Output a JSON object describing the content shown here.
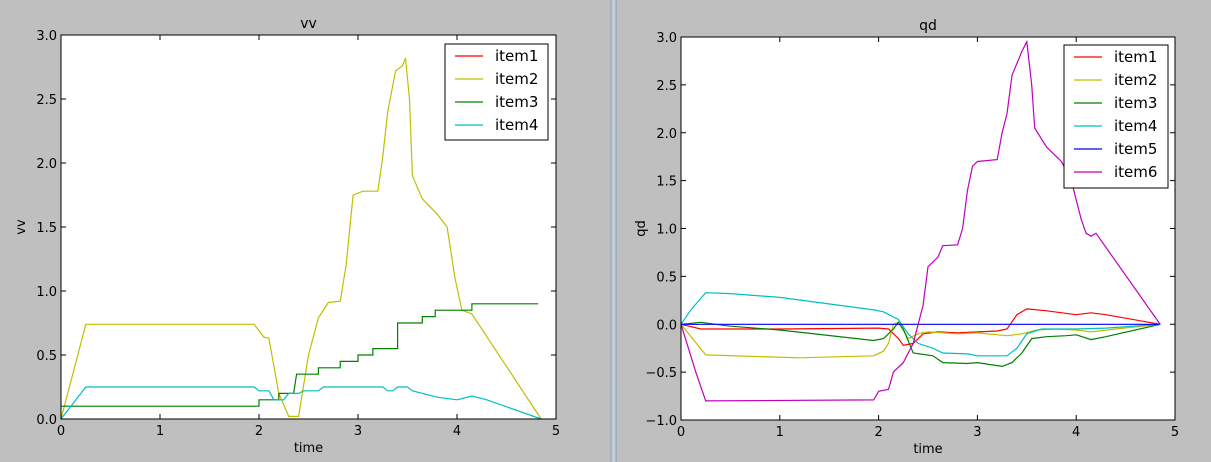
{
  "colors": {
    "item1": "#ff0000",
    "item2": "#bfbf00",
    "item3": "#008000",
    "item4": "#00bfbf",
    "item5": "#0000ff",
    "item6": "#bf00bf"
  },
  "chart_data": [
    {
      "type": "line",
      "title": "vv",
      "xlabel": "time",
      "ylabel": "vv",
      "xlim": [
        0,
        5
      ],
      "ylim": [
        0,
        3.0
      ],
      "xticks": [
        "0",
        "1",
        "2",
        "3",
        "4",
        "5"
      ],
      "yticks": [
        "0.0",
        "0.5",
        "1.0",
        "1.5",
        "2.0",
        "2.5",
        "3.0"
      ],
      "legend": "top-right",
      "series": [
        {
          "name": "item1",
          "color": "#ff0000",
          "points": []
        },
        {
          "name": "item2",
          "color": "#bfbf00",
          "points": [
            [
              0,
              0
            ],
            [
              0.25,
              0.74
            ],
            [
              1.95,
              0.74
            ],
            [
              2.05,
              0.64
            ],
            [
              2.1,
              0.63
            ],
            [
              2.2,
              0.2
            ],
            [
              2.3,
              0.02
            ],
            [
              2.4,
              0.02
            ],
            [
              2.5,
              0.5
            ],
            [
              2.6,
              0.79
            ],
            [
              2.7,
              0.91
            ],
            [
              2.82,
              0.92
            ],
            [
              2.88,
              1.2
            ],
            [
              2.95,
              1.75
            ],
            [
              3.05,
              1.78
            ],
            [
              3.2,
              1.78
            ],
            [
              3.25,
              2.05
            ],
            [
              3.3,
              2.4
            ],
            [
              3.38,
              2.72
            ],
            [
              3.45,
              2.76
            ],
            [
              3.48,
              2.82
            ],
            [
              3.52,
              2.5
            ],
            [
              3.55,
              1.9
            ],
            [
              3.65,
              1.72
            ],
            [
              3.8,
              1.6
            ],
            [
              3.9,
              1.5
            ],
            [
              3.98,
              1.1
            ],
            [
              4.05,
              0.85
            ],
            [
              4.15,
              0.82
            ],
            [
              4.85,
              0.0
            ]
          ]
        },
        {
          "name": "item3",
          "color": "#008000",
          "points": [
            [
              0,
              0.1
            ],
            [
              2.0,
              0.1
            ],
            [
              2.0,
              0.15
            ],
            [
              2.2,
              0.15
            ],
            [
              2.2,
              0.2
            ],
            [
              2.35,
              0.2
            ],
            [
              2.38,
              0.35
            ],
            [
              2.6,
              0.35
            ],
            [
              2.6,
              0.4
            ],
            [
              2.82,
              0.4
            ],
            [
              2.82,
              0.45
            ],
            [
              3.0,
              0.45
            ],
            [
              3.0,
              0.5
            ],
            [
              3.15,
              0.5
            ],
            [
              3.15,
              0.55
            ],
            [
              3.4,
              0.55
            ],
            [
              3.4,
              0.75
            ],
            [
              3.65,
              0.75
            ],
            [
              3.65,
              0.8
            ],
            [
              3.78,
              0.8
            ],
            [
              3.78,
              0.85
            ],
            [
              4.15,
              0.85
            ],
            [
              4.15,
              0.9
            ],
            [
              4.82,
              0.9
            ]
          ]
        },
        {
          "name": "item4",
          "color": "#00bfbf",
          "points": [
            [
              0,
              0
            ],
            [
              0.1,
              0.1
            ],
            [
              0.25,
              0.25
            ],
            [
              1.95,
              0.25
            ],
            [
              2.0,
              0.22
            ],
            [
              2.1,
              0.22
            ],
            [
              2.15,
              0.15
            ],
            [
              2.25,
              0.15
            ],
            [
              2.3,
              0.2
            ],
            [
              2.4,
              0.2
            ],
            [
              2.45,
              0.22
            ],
            [
              2.6,
              0.22
            ],
            [
              2.65,
              0.25
            ],
            [
              3.25,
              0.25
            ],
            [
              3.3,
              0.22
            ],
            [
              3.35,
              0.22
            ],
            [
              3.4,
              0.25
            ],
            [
              3.5,
              0.25
            ],
            [
              3.55,
              0.22
            ],
            [
              3.7,
              0.19
            ],
            [
              3.8,
              0.17
            ],
            [
              4.0,
              0.15
            ],
            [
              4.15,
              0.18
            ],
            [
              4.3,
              0.15
            ],
            [
              4.85,
              0.0
            ]
          ]
        }
      ]
    },
    {
      "type": "line",
      "title": "qd",
      "xlabel": "time",
      "ylabel": "qd",
      "xlim": [
        0,
        5
      ],
      "ylim": [
        -1.0,
        3.0
      ],
      "xticks": [
        "0",
        "1",
        "2",
        "3",
        "4",
        "5"
      ],
      "yticks": [
        "−1.0",
        "−0.5",
        "0.0",
        "0.5",
        "1.0",
        "1.5",
        "2.0",
        "2.5",
        "3.0"
      ],
      "legend": "top-right",
      "series": [
        {
          "name": "item1",
          "color": "#ff0000",
          "points": [
            [
              0,
              0
            ],
            [
              0.2,
              -0.05
            ],
            [
              1.0,
              -0.05
            ],
            [
              2.0,
              -0.04
            ],
            [
              2.1,
              -0.05
            ],
            [
              2.2,
              -0.15
            ],
            [
              2.25,
              -0.22
            ],
            [
              2.35,
              -0.2
            ],
            [
              2.45,
              -0.1
            ],
            [
              2.6,
              -0.08
            ],
            [
              2.8,
              -0.09
            ],
            [
              3.0,
              -0.08
            ],
            [
              3.2,
              -0.07
            ],
            [
              3.3,
              -0.05
            ],
            [
              3.4,
              0.1
            ],
            [
              3.5,
              0.16
            ],
            [
              3.7,
              0.14
            ],
            [
              4.0,
              0.1
            ],
            [
              4.15,
              0.12
            ],
            [
              4.3,
              0.1
            ],
            [
              4.85,
              0.0
            ]
          ]
        },
        {
          "name": "item2",
          "color": "#bfbf00",
          "points": [
            [
              0,
              0
            ],
            [
              0.25,
              -0.32
            ],
            [
              1.2,
              -0.35
            ],
            [
              1.95,
              -0.33
            ],
            [
              2.05,
              -0.28
            ],
            [
              2.1,
              -0.2
            ],
            [
              2.15,
              0.0
            ],
            [
              2.2,
              0.02
            ],
            [
              2.3,
              -0.15
            ],
            [
              2.4,
              -0.1
            ],
            [
              2.5,
              -0.08
            ],
            [
              2.8,
              -0.1
            ],
            [
              3.0,
              -0.09
            ],
            [
              3.3,
              -0.12
            ],
            [
              3.45,
              -0.1
            ],
            [
              3.6,
              -0.06
            ],
            [
              3.8,
              -0.05
            ],
            [
              4.0,
              -0.06
            ],
            [
              4.15,
              -0.08
            ],
            [
              4.4,
              -0.05
            ],
            [
              4.85,
              0.0
            ]
          ]
        },
        {
          "name": "item3",
          "color": "#008000",
          "points": [
            [
              0,
              0
            ],
            [
              0.2,
              0.02
            ],
            [
              0.5,
              -0.02
            ],
            [
              1.0,
              -0.06
            ],
            [
              1.95,
              -0.17
            ],
            [
              2.05,
              -0.15
            ],
            [
              2.15,
              -0.05
            ],
            [
              2.2,
              0.02
            ],
            [
              2.25,
              -0.05
            ],
            [
              2.35,
              -0.3
            ],
            [
              2.55,
              -0.33
            ],
            [
              2.65,
              -0.4
            ],
            [
              2.9,
              -0.41
            ],
            [
              3.0,
              -0.4
            ],
            [
              3.25,
              -0.44
            ],
            [
              3.35,
              -0.4
            ],
            [
              3.45,
              -0.3
            ],
            [
              3.55,
              -0.15
            ],
            [
              3.7,
              -0.13
            ],
            [
              3.9,
              -0.12
            ],
            [
              4.0,
              -0.11
            ],
            [
              4.15,
              -0.16
            ],
            [
              4.3,
              -0.13
            ],
            [
              4.85,
              0.0
            ]
          ]
        },
        {
          "name": "item4",
          "color": "#00bfbf",
          "points": [
            [
              0,
              0
            ],
            [
              0.1,
              0.15
            ],
            [
              0.25,
              0.33
            ],
            [
              0.5,
              0.32
            ],
            [
              1.0,
              0.28
            ],
            [
              1.95,
              0.15
            ],
            [
              2.05,
              0.13
            ],
            [
              2.2,
              0.05
            ],
            [
              2.3,
              -0.1
            ],
            [
              2.4,
              -0.2
            ],
            [
              2.55,
              -0.25
            ],
            [
              2.65,
              -0.3
            ],
            [
              2.9,
              -0.31
            ],
            [
              3.0,
              -0.33
            ],
            [
              3.3,
              -0.33
            ],
            [
              3.4,
              -0.25
            ],
            [
              3.5,
              -0.1
            ],
            [
              3.65,
              -0.05
            ],
            [
              4.0,
              -0.05
            ],
            [
              4.3,
              -0.04
            ],
            [
              4.85,
              0.0
            ]
          ]
        },
        {
          "name": "item5",
          "color": "#0000ff",
          "points": [
            [
              0,
              0
            ],
            [
              4.85,
              0
            ]
          ]
        },
        {
          "name": "item6",
          "color": "#bf00bf",
          "points": [
            [
              0,
              0
            ],
            [
              0.15,
              -0.5
            ],
            [
              0.25,
              -0.8
            ],
            [
              1.95,
              -0.79
            ],
            [
              2.0,
              -0.7
            ],
            [
              2.1,
              -0.68
            ],
            [
              2.15,
              -0.5
            ],
            [
              2.25,
              -0.4
            ],
            [
              2.35,
              -0.2
            ],
            [
              2.45,
              0.2
            ],
            [
              2.5,
              0.6
            ],
            [
              2.6,
              0.7
            ],
            [
              2.65,
              0.82
            ],
            [
              2.8,
              0.83
            ],
            [
              2.85,
              1.0
            ],
            [
              2.9,
              1.4
            ],
            [
              2.95,
              1.65
            ],
            [
              3.0,
              1.7
            ],
            [
              3.2,
              1.72
            ],
            [
              3.25,
              2.0
            ],
            [
              3.3,
              2.2
            ],
            [
              3.35,
              2.6
            ],
            [
              3.45,
              2.85
            ],
            [
              3.5,
              2.95
            ],
            [
              3.55,
              2.5
            ],
            [
              3.58,
              2.05
            ],
            [
              3.7,
              1.85
            ],
            [
              3.85,
              1.7
            ],
            [
              3.95,
              1.5
            ],
            [
              4.05,
              1.1
            ],
            [
              4.1,
              0.95
            ],
            [
              4.15,
              0.92
            ],
            [
              4.2,
              0.95
            ],
            [
              4.85,
              0.0
            ]
          ]
        }
      ]
    }
  ]
}
